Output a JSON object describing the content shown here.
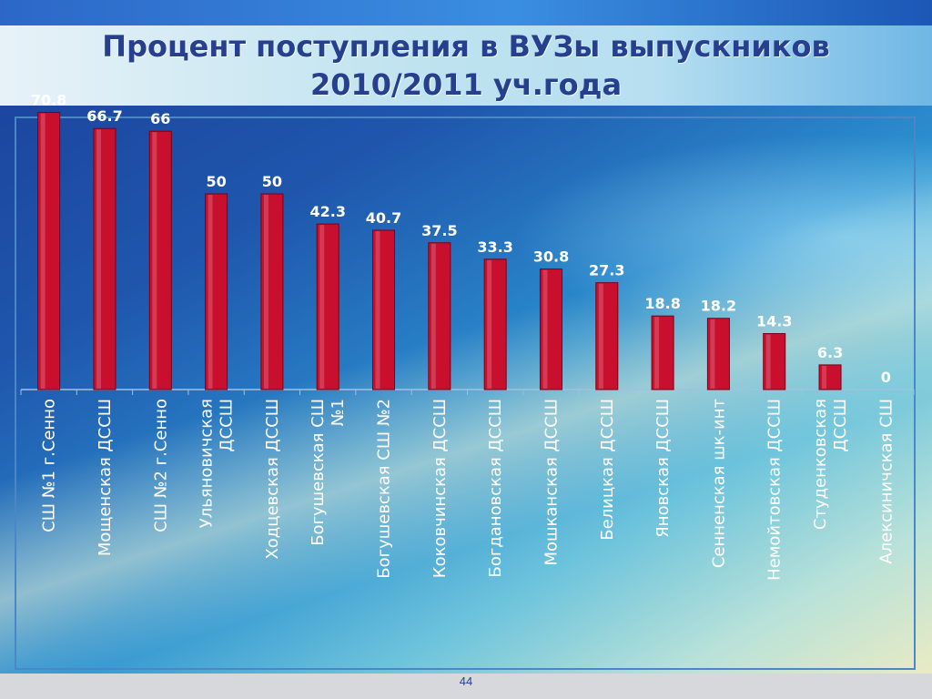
{
  "title_line1": "Процент поступления в ВУЗы выпускников",
  "title_line2": "2010/2011 уч.года",
  "page_number": "44",
  "colors": {
    "bar": "#c8102e",
    "bar_edge": "#7a0014",
    "title": "#26408f",
    "label": "#ffffff"
  },
  "chart_data": {
    "type": "bar",
    "title": "Процент поступления в ВУЗы выпускников 2010/2011 уч.года",
    "categories": [
      [
        "СШ №1 г.Сенно"
      ],
      [
        "Мощенская ДССШ"
      ],
      [
        "СШ №2 г.Сенно"
      ],
      [
        "Ульяновичская",
        "ДССШ"
      ],
      [
        "Ходцевская ДССШ"
      ],
      [
        "Богушевская СШ",
        "№1"
      ],
      [
        "Богушевская СШ №2"
      ],
      [
        "Коковчинская ДССШ"
      ],
      [
        "Богдановская ДССШ"
      ],
      [
        "Мошканская ДССШ"
      ],
      [
        "Белицкая ДССШ"
      ],
      [
        "Яновская ДССШ"
      ],
      [
        "Сенненская шк-инт"
      ],
      [
        "Немойтовская ДССШ"
      ],
      [
        "Студенковская",
        "ДССШ"
      ],
      [
        "Алексиничская СШ"
      ]
    ],
    "values": [
      70.8,
      66.7,
      66,
      50,
      50,
      42.3,
      40.7,
      37.5,
      33.3,
      30.8,
      27.3,
      18.8,
      18.2,
      14.3,
      6.3,
      0
    ],
    "value_labels": [
      "70.8",
      "66.7",
      "66",
      "50",
      "50",
      "42.3",
      "40.7",
      "37.5",
      "33.3",
      "30.8",
      "27.3",
      "18.8",
      "18.2",
      "14.3",
      "6.3",
      "0"
    ],
    "xlabel": "",
    "ylabel": "",
    "ylim": [
      0,
      80
    ],
    "grid": false,
    "legend": "none"
  }
}
